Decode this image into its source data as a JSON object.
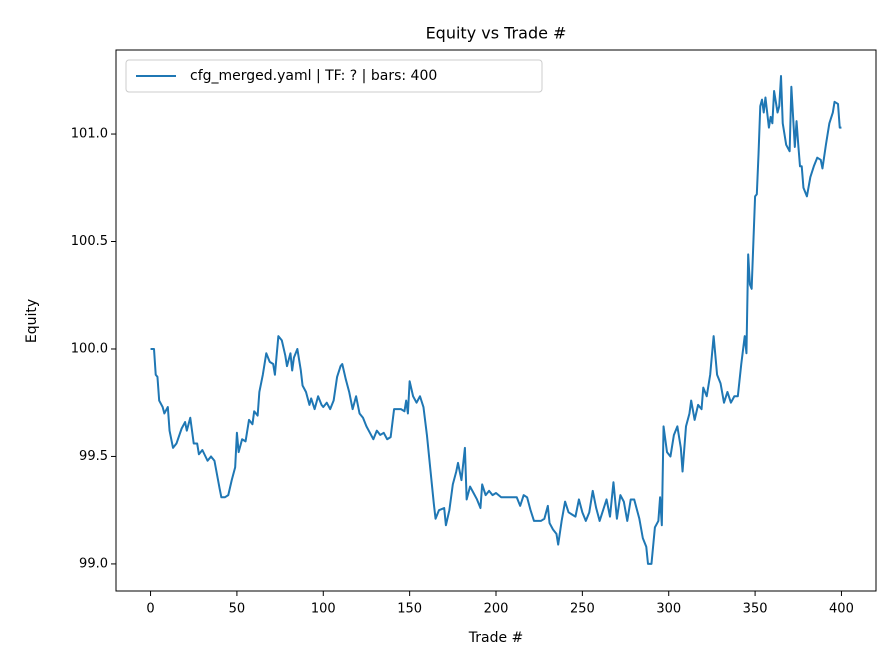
{
  "chart_data": {
    "type": "line",
    "title": "Equity vs Trade #",
    "xlabel": "Trade #",
    "ylabel": "Equity",
    "x": [
      0,
      2,
      3,
      4,
      5,
      7,
      8,
      10,
      11,
      13,
      15,
      18,
      20,
      21,
      23,
      25,
      27,
      28,
      30,
      33,
      35,
      37,
      40,
      41,
      43,
      45,
      47,
      49,
      50,
      51,
      53,
      55,
      57,
      59,
      60,
      62,
      63,
      65,
      67,
      69,
      71,
      72,
      74,
      76,
      78,
      79,
      81,
      82,
      83,
      85,
      87,
      88,
      90,
      92,
      93,
      95,
      97,
      99,
      100,
      102,
      104,
      106,
      108,
      110,
      111,
      113,
      115,
      117,
      119,
      121,
      123,
      125,
      127,
      129,
      131,
      133,
      135,
      137,
      139,
      141,
      145,
      147,
      148,
      149,
      150,
      152,
      154,
      156,
      158,
      160,
      162,
      164,
      165,
      167,
      170,
      171,
      173,
      175,
      177,
      178,
      180,
      182,
      183,
      185,
      187,
      189,
      191,
      192,
      194,
      196,
      198,
      200,
      203,
      206,
      212,
      214,
      216,
      218,
      220,
      222,
      226,
      228,
      230,
      231,
      233,
      235,
      236,
      238,
      240,
      242,
      244,
      246,
      248,
      250,
      252,
      254,
      256,
      258,
      260,
      262,
      264,
      266,
      268,
      270,
      272,
      274,
      276,
      278,
      280,
      283,
      285,
      287,
      288,
      290,
      292,
      294,
      295,
      296,
      297,
      299,
      301,
      303,
      305,
      307,
      308,
      310,
      312,
      313,
      315,
      317,
      319,
      320,
      322,
      324,
      326,
      328,
      330,
      332,
      334,
      336,
      338,
      340,
      342,
      344,
      345,
      346,
      347,
      348,
      350,
      351,
      352,
      353,
      354,
      355,
      356,
      358,
      359,
      360,
      361,
      363,
      364,
      365,
      366,
      368,
      370,
      371,
      373,
      374,
      375,
      376,
      377,
      378,
      380,
      382,
      384,
      386,
      388,
      389,
      391,
      393,
      395,
      396,
      398,
      399,
      400
    ],
    "series": [
      {
        "name": "cfg_merged.yaml | TF: ? | bars: 400",
        "color": "#1f77b4",
        "values": [
          100.0,
          100.0,
          99.88,
          99.87,
          99.76,
          99.73,
          99.7,
          99.73,
          99.62,
          99.54,
          99.56,
          99.63,
          99.66,
          99.62,
          99.68,
          99.56,
          99.56,
          99.51,
          99.53,
          99.48,
          99.5,
          99.48,
          99.35,
          99.31,
          99.31,
          99.32,
          99.39,
          99.45,
          99.61,
          99.52,
          99.58,
          99.57,
          99.67,
          99.65,
          99.71,
          99.69,
          99.8,
          99.88,
          99.98,
          99.94,
          99.93,
          99.88,
          100.06,
          100.04,
          99.97,
          99.92,
          99.98,
          99.9,
          99.96,
          100.0,
          99.9,
          99.83,
          99.8,
          99.74,
          99.77,
          99.72,
          99.78,
          99.74,
          99.73,
          99.75,
          99.72,
          99.76,
          99.87,
          99.92,
          99.93,
          99.86,
          99.8,
          99.72,
          99.78,
          99.7,
          99.68,
          99.64,
          99.61,
          99.58,
          99.62,
          99.6,
          99.61,
          99.58,
          99.59,
          99.72,
          99.72,
          99.71,
          99.76,
          99.7,
          99.85,
          99.78,
          99.75,
          99.78,
          99.73,
          99.6,
          99.44,
          99.28,
          99.21,
          99.25,
          99.26,
          99.18,
          99.25,
          99.37,
          99.43,
          99.47,
          99.39,
          99.54,
          99.3,
          99.36,
          99.33,
          99.3,
          99.26,
          99.37,
          99.32,
          99.34,
          99.32,
          99.33,
          99.31,
          99.31,
          99.31,
          99.27,
          99.32,
          99.31,
          99.25,
          99.2,
          99.2,
          99.21,
          99.27,
          99.19,
          99.16,
          99.14,
          99.09,
          99.2,
          99.29,
          99.24,
          99.23,
          99.22,
          99.3,
          99.24,
          99.2,
          99.24,
          99.34,
          99.26,
          99.2,
          99.25,
          99.3,
          99.22,
          99.38,
          99.21,
          99.32,
          99.29,
          99.2,
          99.3,
          99.3,
          99.21,
          99.12,
          99.08,
          99.0,
          99.0,
          99.17,
          99.2,
          99.31,
          99.18,
          99.64,
          99.52,
          99.5,
          99.6,
          99.64,
          99.54,
          99.43,
          99.64,
          99.7,
          99.76,
          99.67,
          99.74,
          99.72,
          99.82,
          99.78,
          99.88,
          100.06,
          99.88,
          99.84,
          99.75,
          99.8,
          99.75,
          99.78,
          99.78,
          99.93,
          100.06,
          99.98,
          100.44,
          100.3,
          100.28,
          100.71,
          100.72,
          100.91,
          101.13,
          101.16,
          101.1,
          101.17,
          101.03,
          101.08,
          101.05,
          101.2,
          101.1,
          101.13,
          101.27,
          101.05,
          100.95,
          100.92,
          101.22,
          100.94,
          101.06,
          100.95,
          100.85,
          100.85,
          100.75,
          100.71,
          100.8,
          100.85,
          100.89,
          100.88,
          100.84,
          100.95,
          101.05,
          101.1,
          101.15,
          101.14,
          101.03,
          101.03
        ]
      }
    ],
    "xlim": [
      -20,
      420
    ],
    "ylim": [
      98.874,
      101.391
    ],
    "xticks": [
      0,
      50,
      100,
      150,
      200,
      250,
      300,
      350,
      400
    ],
    "yticks": [
      {
        "value": 99,
        "label": "99.0"
      },
      99.5,
      {
        "value": 100,
        "label": "100.0"
      },
      100.5,
      {
        "value": 101,
        "label": "101.0"
      }
    ],
    "legend": "upper left",
    "grid": false
  }
}
